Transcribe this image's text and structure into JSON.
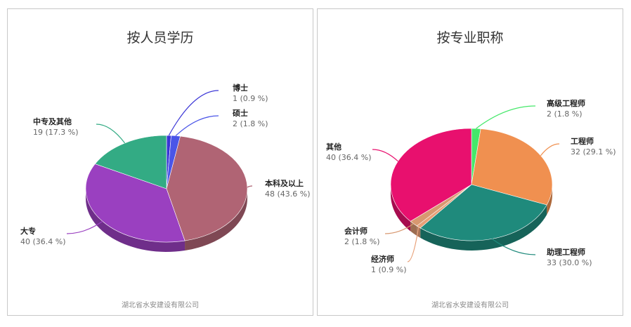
{
  "chart_data": [
    {
      "type": "pie",
      "title": "按人员学历",
      "footer": "湖北省水安建设有限公司",
      "slices": [
        {
          "name": "博士",
          "value": 1,
          "percent": "0.9 %",
          "color": "#3a35d6"
        },
        {
          "name": "硕士",
          "value": 2,
          "percent": "1.8 %",
          "color": "#4a55e8"
        },
        {
          "name": "本科及以上",
          "value": 48,
          "percent": "43.6 %",
          "color": "#b06474"
        },
        {
          "name": "大专",
          "value": 40,
          "percent": "36.4 %",
          "color": "#9a40c0"
        },
        {
          "name": "中专及其他",
          "value": 19,
          "percent": "17.3 %",
          "color": "#33ab84"
        }
      ]
    },
    {
      "type": "pie",
      "title": "按专业职称",
      "footer": "湖北省水安建设有限公司",
      "slices": [
        {
          "name": "高级工程师",
          "value": 2,
          "percent": "1.8 %",
          "color": "#45e86a"
        },
        {
          "name": "工程师",
          "value": 32,
          "percent": "29.1 %",
          "color": "#f09050"
        },
        {
          "name": "助理工程师",
          "value": 33,
          "percent": "30.0 %",
          "color": "#1f8a7c"
        },
        {
          "name": "经济师",
          "value": 1,
          "percent": "0.9 %",
          "color": "#e8a078"
        },
        {
          "name": "会计师",
          "value": 2,
          "percent": "1.8 %",
          "color": "#d89870"
        },
        {
          "name": "其他",
          "value": 40,
          "percent": "36.4 %",
          "color": "#e8106e"
        }
      ]
    }
  ]
}
